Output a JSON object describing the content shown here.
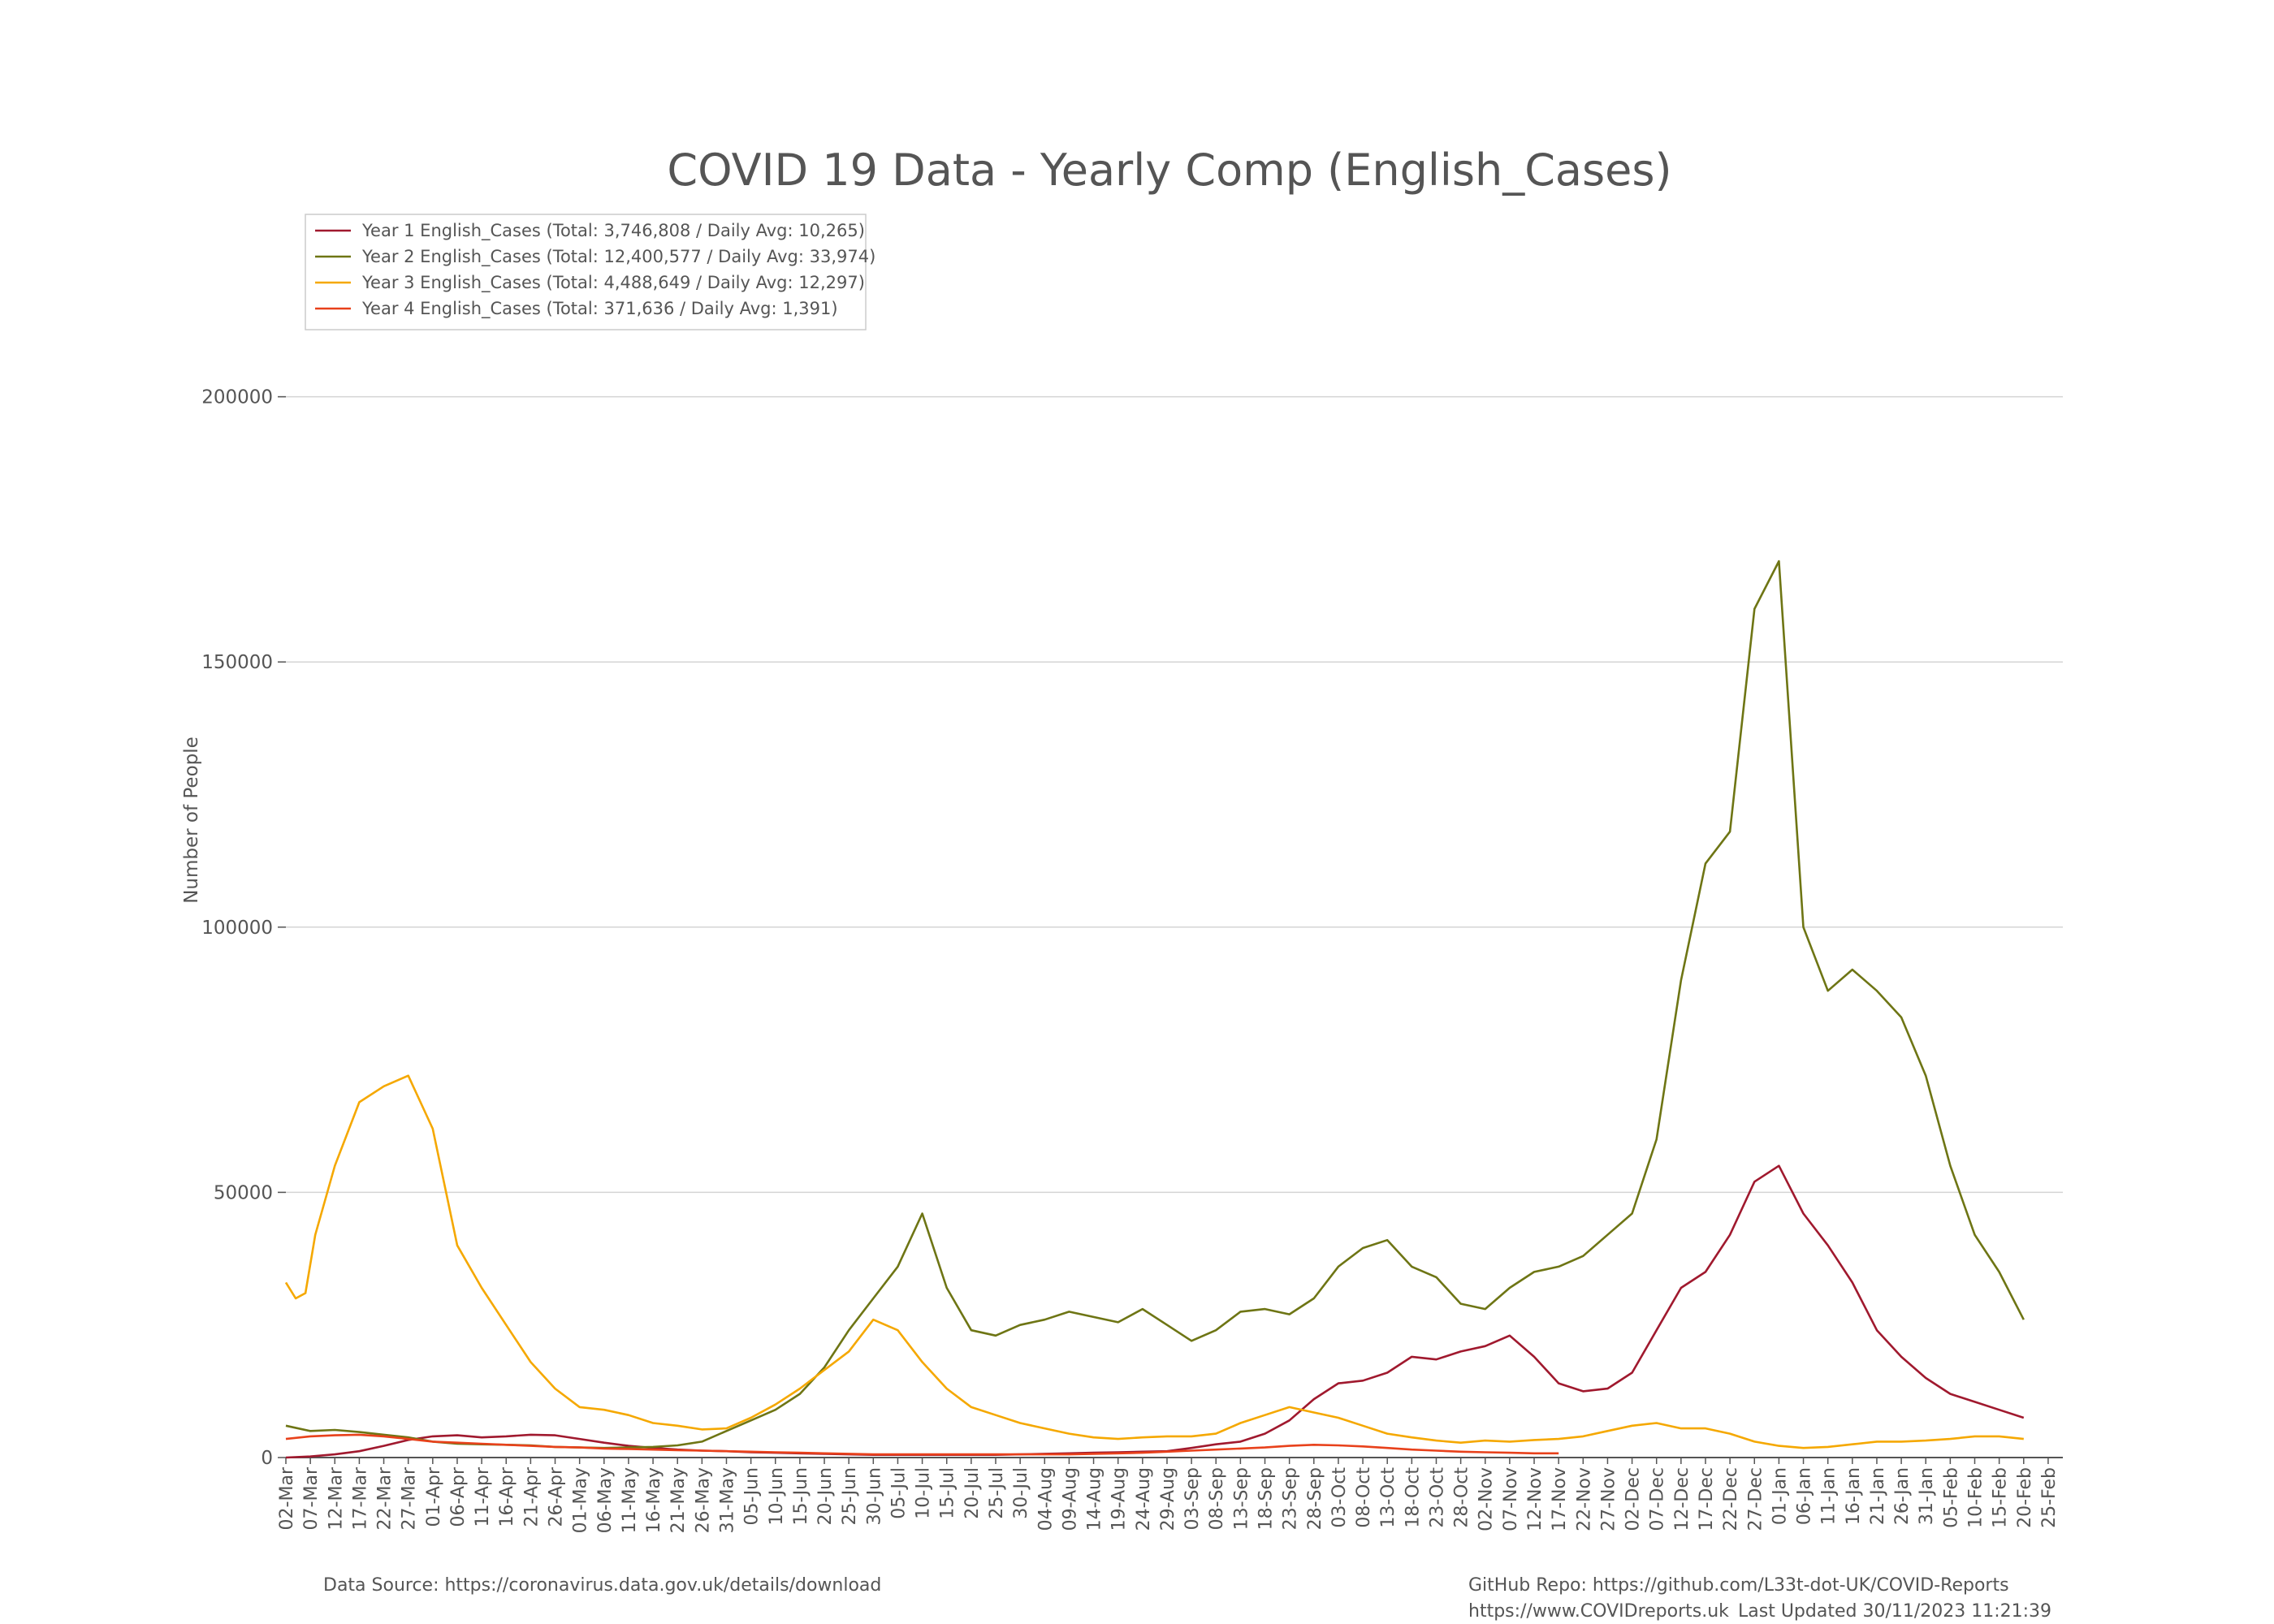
{
  "colors": {
    "year1": "#a0192e",
    "year2": "#6e7514",
    "year3": "#f5a800",
    "year4": "#e8411b",
    "grid": "#d4d4d4",
    "text": "#555555",
    "axis": "#555555"
  },
  "footer": {
    "source": "Data Source: https://coronavirus.data.gov.uk/details/download",
    "github": "GitHub Repo: https://github.com/L33t-dot-UK/COVID-Reports",
    "website": "https://www.COVIDreports.uk",
    "updated": "Last Updated 30/11/2023 11:21:39"
  },
  "chart_data": {
    "type": "line",
    "title": "COVID 19 Data - Yearly Comp (English_Cases)",
    "ylabel": "Number of People",
    "xlabel": "",
    "ylim": [
      0,
      235000
    ],
    "yticks": [
      0,
      50000,
      100000,
      150000,
      200000
    ],
    "grid": true,
    "legend_position": "top-left",
    "x_tick_labels": [
      "02-Mar",
      "07-Mar",
      "12-Mar",
      "17-Mar",
      "22-Mar",
      "27-Mar",
      "01-Apr",
      "06-Apr",
      "11-Apr",
      "16-Apr",
      "21-Apr",
      "26-Apr",
      "01-May",
      "06-May",
      "11-May",
      "16-May",
      "21-May",
      "26-May",
      "31-May",
      "05-Jun",
      "10-Jun",
      "15-Jun",
      "20-Jun",
      "25-Jun",
      "30-Jun",
      "05-Jul",
      "10-Jul",
      "15-Jul",
      "20-Jul",
      "25-Jul",
      "30-Jul",
      "04-Aug",
      "09-Aug",
      "14-Aug",
      "19-Aug",
      "24-Aug",
      "29-Aug",
      "03-Sep",
      "08-Sep",
      "13-Sep",
      "18-Sep",
      "23-Sep",
      "28-Sep",
      "03-Oct",
      "08-Oct",
      "13-Oct",
      "18-Oct",
      "23-Oct",
      "28-Oct",
      "02-Nov",
      "07-Nov",
      "12-Nov",
      "17-Nov",
      "22-Nov",
      "27-Nov",
      "02-Dec",
      "07-Dec",
      "12-Dec",
      "17-Dec",
      "22-Dec",
      "27-Dec",
      "01-Jan",
      "06-Jan",
      "11-Jan",
      "16-Jan",
      "21-Jan",
      "26-Jan",
      "31-Jan",
      "05-Feb",
      "10-Feb",
      "15-Feb",
      "20-Feb",
      "25-Feb"
    ],
    "tick_step_days": 5,
    "x_range_days": [
      0,
      363
    ],
    "series": [
      {
        "name": "Year 1 English_Cases (Total: 3,746,808 / Daily Avg: 10,265)",
        "color_key": "year1",
        "x": [
          0,
          5,
          10,
          15,
          20,
          25,
          30,
          35,
          40,
          45,
          50,
          55,
          60,
          65,
          70,
          75,
          80,
          85,
          90,
          95,
          100,
          105,
          110,
          115,
          120,
          125,
          130,
          135,
          140,
          145,
          150,
          155,
          160,
          165,
          170,
          175,
          180,
          185,
          190,
          195,
          200,
          205,
          210,
          215,
          220,
          225,
          230,
          235,
          240,
          245,
          250,
          255,
          260,
          265,
          270,
          275,
          280,
          285,
          290,
          295,
          300,
          305,
          310,
          315,
          320,
          325,
          330,
          335,
          340,
          345,
          350,
          355
        ],
        "y": [
          0,
          200,
          600,
          1200,
          2200,
          3300,
          4000,
          4200,
          3800,
          4000,
          4300,
          4200,
          3500,
          2800,
          2200,
          1800,
          1500,
          1300,
          1200,
          1000,
          900,
          800,
          700,
          600,
          500,
          500,
          500,
          500,
          500,
          500,
          600,
          700,
          800,
          900,
          1000,
          1100,
          1200,
          1800,
          2500,
          3000,
          4500,
          7000,
          11000,
          14000,
          14500,
          16000,
          19000,
          18500,
          20000,
          21000,
          23000,
          19000,
          14000,
          12500,
          13000,
          16000,
          24000,
          32000,
          35000,
          42000,
          52000,
          55000,
          46000,
          40000,
          33000,
          24000,
          19000,
          15000,
          12000,
          10500,
          9000,
          7500
        ]
      },
      {
        "name": "Year 2 English_Cases (Total: 12,400,577 / Daily Avg: 33,974)",
        "color_key": "year2",
        "x": [
          0,
          5,
          10,
          15,
          20,
          25,
          30,
          35,
          40,
          45,
          50,
          55,
          60,
          65,
          70,
          75,
          80,
          85,
          90,
          95,
          100,
          105,
          110,
          115,
          120,
          125,
          130,
          135,
          140,
          145,
          150,
          155,
          160,
          165,
          170,
          175,
          180,
          185,
          190,
          195,
          200,
          205,
          210,
          215,
          220,
          225,
          230,
          235,
          240,
          245,
          250,
          255,
          260,
          265,
          270,
          275,
          280,
          285,
          290,
          295,
          300,
          305,
          310,
          315,
          320,
          325,
          330,
          335,
          340,
          345,
          350,
          355
        ],
        "y": [
          6000,
          5000,
          5200,
          4800,
          4300,
          3800,
          3000,
          2600,
          2500,
          2400,
          2300,
          2000,
          1900,
          1800,
          1900,
          2000,
          2300,
          3000,
          5000,
          7000,
          9000,
          12000,
          17000,
          24000,
          30000,
          36000,
          46000,
          32000,
          24000,
          23000,
          25000,
          26000,
          27500,
          26500,
          25500,
          28000,
          25000,
          22000,
          24000,
          27500,
          28000,
          27000,
          30000,
          36000,
          39500,
          41000,
          36000,
          34000,
          29000,
          28000,
          32000,
          35000,
          36000,
          38000,
          42000,
          46000,
          60000,
          90000,
          112000,
          118000,
          160000,
          169000,
          100000,
          88000,
          92000,
          88000,
          83000,
          72000,
          55000,
          42000,
          35000,
          26000
        ]
      },
      {
        "name": "Year 3 English_Cases (Total: 4,488,649 / Daily Avg: 12,297)",
        "color_key": "year3",
        "x": [
          0,
          2,
          4,
          6,
          10,
          15,
          20,
          25,
          30,
          35,
          40,
          45,
          50,
          55,
          60,
          65,
          70,
          75,
          80,
          85,
          90,
          95,
          100,
          105,
          110,
          115,
          120,
          125,
          130,
          135,
          140,
          145,
          150,
          155,
          160,
          165,
          170,
          175,
          180,
          185,
          190,
          195,
          200,
          205,
          210,
          215,
          220,
          225,
          230,
          235,
          240,
          245,
          250,
          255,
          260,
          265,
          270,
          275,
          280,
          285,
          290,
          295,
          300,
          305,
          310,
          315,
          320,
          325,
          330,
          335,
          340,
          345,
          350,
          355
        ],
        "y": [
          33000,
          30000,
          31000,
          42000,
          55000,
          67000,
          70000,
          72000,
          62000,
          40000,
          32000,
          25000,
          18000,
          13000,
          9500,
          9000,
          8000,
          6500,
          6000,
          5300,
          5500,
          7500,
          10000,
          13000,
          16500,
          20000,
          26000,
          24000,
          18000,
          13000,
          9500,
          8000,
          6500,
          5500,
          4500,
          3800,
          3500,
          3800,
          4000,
          4000,
          4500,
          6500,
          8000,
          9500,
          8500,
          7500,
          6000,
          4500,
          3800,
          3200,
          2800,
          3200,
          3000,
          3300,
          3500,
          4000,
          5000,
          6000,
          6500,
          5500,
          5500,
          4500,
          3000,
          2200,
          1800,
          2000,
          2500,
          3000,
          3000,
          3200,
          3500,
          4000,
          4000,
          3500
        ]
      },
      {
        "name": "Year 4 English_Cases (Total: 371,636 / Daily Avg: 1,391)",
        "color_key": "year4",
        "x": [
          0,
          5,
          10,
          15,
          20,
          25,
          30,
          35,
          40,
          45,
          50,
          55,
          60,
          65,
          70,
          75,
          80,
          85,
          90,
          95,
          100,
          105,
          110,
          115,
          120,
          125,
          130,
          135,
          140,
          145,
          150,
          155,
          160,
          165,
          170,
          175,
          180,
          185,
          190,
          195,
          200,
          205,
          210,
          215,
          220,
          225,
          230,
          235,
          240,
          245,
          250,
          255,
          260
        ],
        "y": [
          3500,
          4000,
          4200,
          4300,
          4000,
          3500,
          3000,
          2800,
          2600,
          2400,
          2200,
          2000,
          1900,
          1700,
          1600,
          1500,
          1400,
          1300,
          1200,
          1100,
          1000,
          900,
          800,
          700,
          600,
          600,
          600,
          600,
          600,
          600,
          600,
          600,
          600,
          700,
          800,
          900,
          1100,
          1300,
          1500,
          1700,
          1900,
          2200,
          2400,
          2300,
          2100,
          1800,
          1500,
          1300,
          1100,
          1000,
          900,
          800,
          800
        ]
      }
    ]
  }
}
